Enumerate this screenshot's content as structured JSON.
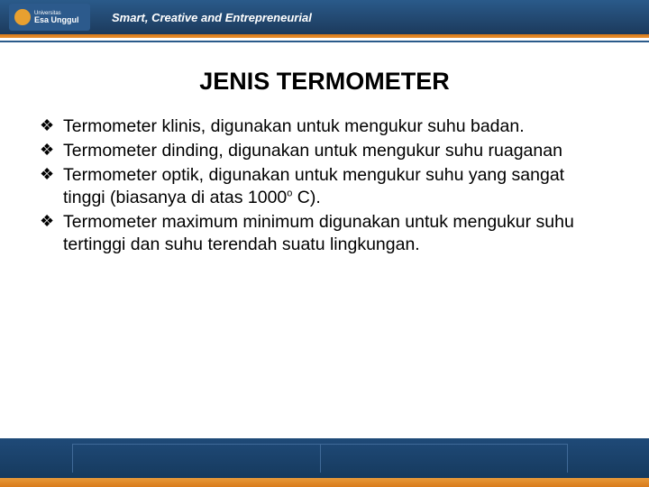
{
  "header": {
    "logo_small": "Universitas",
    "logo_main": "Esa Unggul",
    "tagline": "Smart, Creative and Entrepreneurial"
  },
  "slide": {
    "title": "JENIS TERMOMETER",
    "bullets": [
      "Termometer klinis, digunakan untuk mengukur suhu badan.",
      "Termometer dinding, digunakan untuk mengukur suhu ruaganan",
      "Termometer optik, digunakan untuk mengukur suhu yang sangat tinggi (biasanya di atas 1000° C).",
      "Termometer maximum minimum digunakan untuk mengukur suhu tertinggi dan suhu terendah suatu lingkungan."
    ]
  },
  "colors": {
    "header_bg": "#1c3a5c",
    "accent_orange": "#e89030",
    "text": "#000000",
    "background": "#ffffff"
  }
}
